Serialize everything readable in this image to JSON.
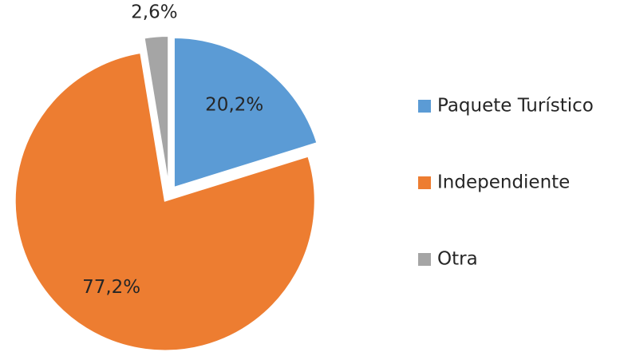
{
  "chart_data": {
    "type": "pie",
    "categories": [
      "Paquete Turístico",
      "Independiente",
      "Otra"
    ],
    "values": [
      20.2,
      77.2,
      2.6
    ],
    "value_labels": [
      "20,2%",
      "77,2%",
      "2,6%"
    ],
    "colors": [
      "#5b9bd5",
      "#ed7d31",
      "#a5a5a5"
    ],
    "legend": "right"
  }
}
